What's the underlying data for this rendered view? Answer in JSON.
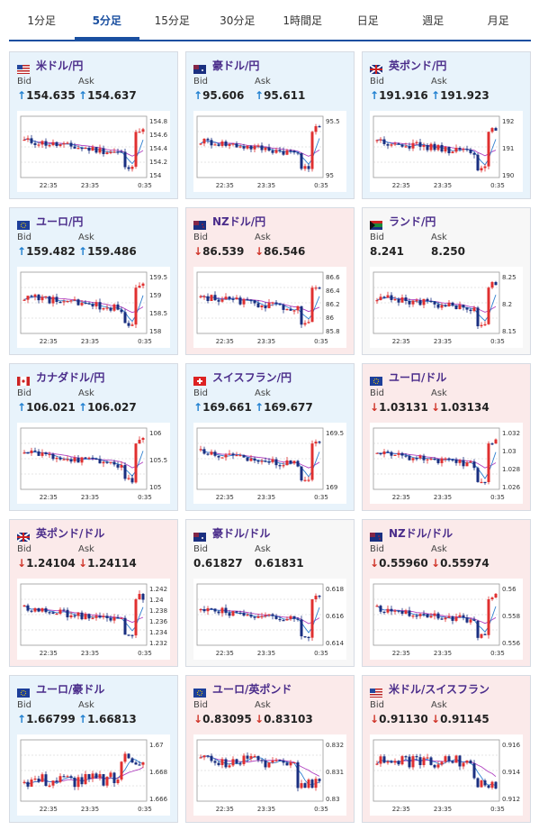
{
  "tabs": [
    "1分足",
    "5分足",
    "15分足",
    "30分足",
    "1時間足",
    "日足",
    "週足",
    "月足"
  ],
  "active_tab": 1,
  "labels": {
    "bid": "Bid",
    "ask": "Ask"
  },
  "cards": [
    {
      "pair": "米ドル/円",
      "dir": "up",
      "bid": "154.635",
      "ask": "154.637",
      "flag": "us-jp-flag-icon",
      "ticks": [
        "154.8",
        "154.6",
        "154.4",
        "154.2",
        "154"
      ],
      "x": [
        "22:35",
        "23:35",
        "0:35"
      ],
      "shape": "dip"
    },
    {
      "pair": "豪ドル/円",
      "dir": "up",
      "bid": "95.606",
      "ask": "95.611",
      "flag": "au-jp-flag-icon",
      "ticks": [
        "95.5",
        "95"
      ],
      "x": [
        "22:35",
        "23:35",
        "0:35"
      ],
      "shape": "dip"
    },
    {
      "pair": "英ポンド/円",
      "dir": "up",
      "bid": "191.916",
      "ask": "191.923",
      "flag": "gb-jp-flag-icon",
      "ticks": [
        "192",
        "191",
        "190"
      ],
      "x": [
        "22:35",
        "23:35",
        "0:35"
      ],
      "shape": "dip"
    },
    {
      "pair": "ユーロ/円",
      "dir": "up",
      "bid": "159.482",
      "ask": "159.486",
      "flag": "eu-jp-flag-icon",
      "ticks": [
        "159.5",
        "159",
        "158.5",
        "158"
      ],
      "x": [
        "22:35",
        "23:35",
        "0:35"
      ],
      "shape": "dip"
    },
    {
      "pair": "NZドル/円",
      "dir": "down",
      "bid": "86.539",
      "ask": "86.546",
      "flag": "nz-jp-flag-icon",
      "ticks": [
        "86.6",
        "86.4",
        "86.2",
        "86",
        "85.8"
      ],
      "x": [
        "22:35",
        "23:35",
        "0:35"
      ],
      "shape": "dip"
    },
    {
      "pair": "ランド/円",
      "dir": "none",
      "bid": "8.241",
      "ask": "8.250",
      "flag": "za-jp-flag-icon",
      "ticks": [
        "8.25",
        "8.2",
        "8.15"
      ],
      "x": [
        "22:35",
        "23:35",
        "0:35"
      ],
      "shape": "dip"
    },
    {
      "pair": "カナダドル/円",
      "dir": "up",
      "bid": "106.021",
      "ask": "106.027",
      "flag": "ca-jp-flag-icon",
      "ticks": [
        "106",
        "105.5",
        "105"
      ],
      "x": [
        "22:35",
        "23:35",
        "0:35"
      ],
      "shape": "dip"
    },
    {
      "pair": "スイスフラン/円",
      "dir": "up",
      "bid": "169.661",
      "ask": "169.677",
      "flag": "ch-jp-flag-icon",
      "ticks": [
        "169.5",
        "169"
      ],
      "x": [
        "22:35",
        "23:35",
        "0:35"
      ],
      "shape": "dip"
    },
    {
      "pair": "ユーロ/ドル",
      "dir": "down",
      "bid": "1.03131",
      "ask": "1.03134",
      "flag": "eu-us-flag-icon",
      "ticks": [
        "1.032",
        "1.03",
        "1.028",
        "1.026"
      ],
      "x": [
        "22:35",
        "23:35",
        "0:35"
      ],
      "shape": "dip"
    },
    {
      "pair": "英ポンド/ドル",
      "dir": "down",
      "bid": "1.24104",
      "ask": "1.24114",
      "flag": "gb-us-flag-icon",
      "ticks": [
        "1.242",
        "1.24",
        "1.238",
        "1.236",
        "1.234",
        "1.232"
      ],
      "x": [
        "22:35",
        "23:35",
        "0:35"
      ],
      "shape": "dip"
    },
    {
      "pair": "豪ドル/ドル",
      "dir": "none",
      "bid": "0.61827",
      "ask": "0.61831",
      "flag": "au-us-flag-icon",
      "ticks": [
        "0.618",
        "0.616",
        "0.614"
      ],
      "x": [
        "22:35",
        "23:35",
        "0:35"
      ],
      "shape": "dip"
    },
    {
      "pair": "NZドル/ドル",
      "dir": "down",
      "bid": "0.55960",
      "ask": "0.55974",
      "flag": "nz-us-flag-icon",
      "ticks": [
        "0.56",
        "0.558",
        "0.556"
      ],
      "x": [
        "22:35",
        "23:35",
        "0:35"
      ],
      "shape": "dip"
    },
    {
      "pair": "ユーロ/豪ドル",
      "dir": "up",
      "bid": "1.66799",
      "ask": "1.66813",
      "flag": "eu-au-flag-icon",
      "ticks": [
        "1.67",
        "1.668",
        "1.666"
      ],
      "x": [
        "22:35",
        "23:35",
        "0:35"
      ],
      "shape": "rise"
    },
    {
      "pair": "ユーロ/英ポンド",
      "dir": "down",
      "bid": "0.83095",
      "ask": "0.83103",
      "flag": "eu-gb-flag-icon",
      "ticks": [
        "0.832",
        "0.831",
        "0.83"
      ],
      "x": [
        "22:35",
        "23:35",
        "0:35"
      ],
      "shape": "fall"
    },
    {
      "pair": "米ドル/スイスフラン",
      "dir": "down",
      "bid": "0.91130",
      "ask": "0.91145",
      "flag": "us-ch-flag-icon",
      "ticks": [
        "0.916",
        "0.914",
        "0.912"
      ],
      "x": [
        "22:35",
        "23:35",
        "0:35"
      ],
      "shape": "fall"
    }
  ],
  "colors": {
    "up_bg": "#e8f3fb",
    "down_bg": "#fbeaea",
    "candle_up": "#e03030",
    "candle_down": "#1a2f80",
    "ma1": "#b040c0",
    "ma2": "#3080d0"
  }
}
